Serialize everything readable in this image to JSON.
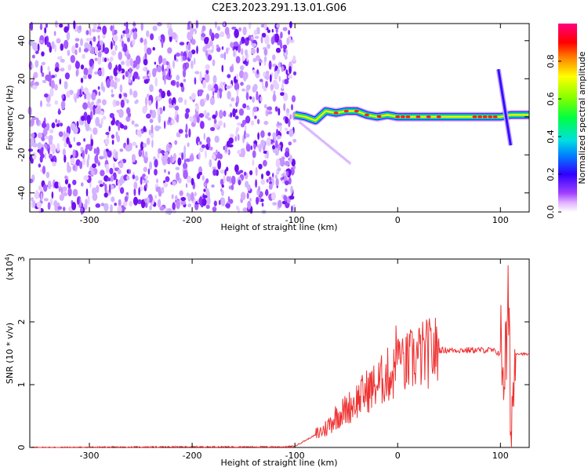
{
  "title": "C2E3.2023.291.13.01.G06",
  "chart_data": [
    {
      "type": "heatmap",
      "xlabel": "Height of straight line (km)",
      "ylabel": "Frequency (Hz)",
      "xlim": [
        -358,
        128
      ],
      "ylim": [
        -50,
        49
      ],
      "xticks": [
        -300,
        -200,
        -100,
        0,
        100
      ],
      "xtick_labels": [
        "-300",
        "-200",
        "-100",
        "0",
        "100"
      ],
      "yticks": [
        40,
        20,
        0,
        -20,
        -40
      ],
      "ytick_labels": [
        "40",
        "20",
        "0",
        "-20",
        "-40"
      ],
      "colorbar": {
        "label": "Normalized spectral amplitude",
        "range": [
          0,
          1
        ],
        "ticks": [
          0.0,
          0.2,
          0.4,
          0.6,
          0.8
        ],
        "tick_labels": [
          "0.0",
          "0.2",
          "0.4",
          "0.6",
          "0.8"
        ],
        "colormap": "rainbow (white-violet-blue-cyan-green-yellow-red-magenta)"
      },
      "noise_region_x": [
        -358,
        -100
      ],
      "signal_ridge": [
        {
          "x": -100,
          "y": 1
        },
        {
          "x": -90,
          "y": 0
        },
        {
          "x": -80,
          "y": -2
        },
        {
          "x": -70,
          "y": 3
        },
        {
          "x": -60,
          "y": 2
        },
        {
          "x": -50,
          "y": 3
        },
        {
          "x": -40,
          "y": 3
        },
        {
          "x": -30,
          "y": 1
        },
        {
          "x": -20,
          "y": 0
        },
        {
          "x": -10,
          "y": 1
        },
        {
          "x": 0,
          "y": 0
        },
        {
          "x": 20,
          "y": 0
        },
        {
          "x": 40,
          "y": 0
        },
        {
          "x": 60,
          "y": 0
        },
        {
          "x": 80,
          "y": 0
        },
        {
          "x": 100,
          "y": 0
        },
        {
          "x": 110,
          "y": 1
        },
        {
          "x": 128,
          "y": 1
        }
      ],
      "vertical_streak": {
        "x_from": 98,
        "x_to": 110,
        "y_from": 25,
        "y_to": -15
      }
    },
    {
      "type": "line",
      "xlabel": "Height of straight line (km)",
      "ylabel": "SNR (10 * v/v)",
      "y_multiplier": "(x10^4)",
      "y_multiplier_base": "(x10",
      "y_multiplier_exp": "4",
      "y_multiplier_close": ")",
      "xlim": [
        -358,
        128
      ],
      "ylim": [
        0,
        3
      ],
      "xticks": [
        -300,
        -200,
        -100,
        0,
        100
      ],
      "xtick_labels": [
        "-300",
        "-200",
        "-100",
        "0",
        "100"
      ],
      "yticks": [
        0,
        1,
        2,
        3
      ],
      "ytick_labels": [
        "0",
        "1",
        "2",
        "3"
      ],
      "series": [
        {
          "color": "#ee3333",
          "x": [
            -358,
            -200,
            -110,
            -100,
            -80,
            -70,
            -60,
            -50,
            -40,
            -30,
            -20,
            -10,
            0,
            10,
            20,
            30,
            40,
            50,
            60,
            70,
            80,
            90,
            100,
            105,
            108,
            110,
            115,
            128
          ],
          "y": [
            0.0,
            0.01,
            0.01,
            0.02,
            0.2,
            0.3,
            0.5,
            0.6,
            0.75,
            0.9,
            1.0,
            1.15,
            1.2,
            1.35,
            1.45,
            1.5,
            1.55,
            1.55,
            1.55,
            1.55,
            1.55,
            1.55,
            1.5,
            1.3,
            2.2,
            0.3,
            1.5,
            1.48
          ]
        }
      ]
    }
  ],
  "colors": {
    "line": "#ee3333",
    "axis": "#000000"
  }
}
